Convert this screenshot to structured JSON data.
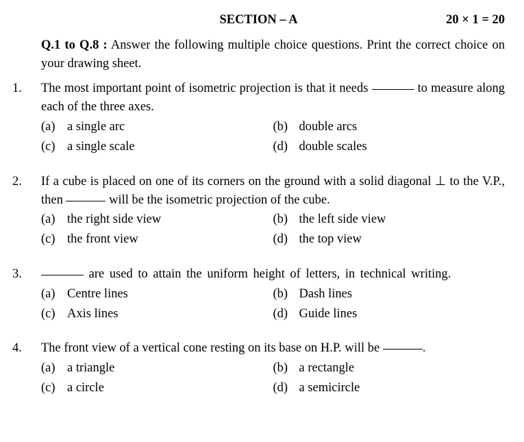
{
  "header": {
    "section_title": "SECTION – A",
    "marks": "20 × 1 = 20"
  },
  "instructions": {
    "range": "Q.1 to Q.8 :",
    "text": " Answer the following multiple choice questions. Print the correct choice on your drawing sheet."
  },
  "questions": [
    {
      "num": "1.",
      "text_pre": "The most important point of isometric projection is that it needs ",
      "text_post": " to measure along each of the three axes.",
      "options": [
        {
          "label": "(a)",
          "text": "a single arc"
        },
        {
          "label": "(b)",
          "text": "double arcs"
        },
        {
          "label": "(c)",
          "text": "a single scale"
        },
        {
          "label": "(d)",
          "text": "double scales"
        }
      ]
    },
    {
      "num": "2.",
      "text_pre": "If a cube is placed on one of its corners on the ground with a solid diagonal ",
      "perp": "⊥",
      "text_mid": " to the V.P., then ",
      "text_post": " will be the isometric projection of the cube.",
      "options": [
        {
          "label": "(a)",
          "text": "the right side view"
        },
        {
          "label": "(b)",
          "text": "the left side view"
        },
        {
          "label": "(c)",
          "text": "the front view"
        },
        {
          "label": "(d)",
          "text": "the top view"
        }
      ]
    },
    {
      "num": "3.",
      "text_pre": "",
      "text_post": " are used to attain the uniform height of letters, in technical writing.",
      "options": [
        {
          "label": "(a)",
          "text": "Centre lines"
        },
        {
          "label": "(b)",
          "text": "Dash lines"
        },
        {
          "label": "(c)",
          "text": "Axis lines"
        },
        {
          "label": "(d)",
          "text": "Guide lines"
        }
      ]
    },
    {
      "num": "4.",
      "text_pre": "The front view of a vertical cone resting on its base on H.P. will be ",
      "text_post": ".",
      "options": [
        {
          "label": "(a)",
          "text": "a triangle"
        },
        {
          "label": "(b)",
          "text": "a rectangle"
        },
        {
          "label": "(c)",
          "text": "a circle"
        },
        {
          "label": "(d)",
          "text": "a semicircle"
        }
      ]
    }
  ]
}
